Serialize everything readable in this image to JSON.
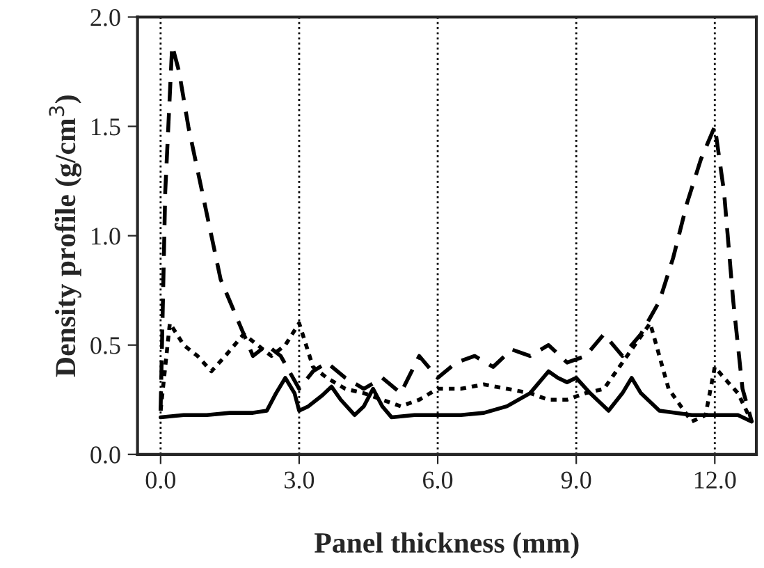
{
  "chart_data": {
    "type": "line",
    "xlabel": "Panel thickness (mm)",
    "ylabel": "Density profile (g/cm$^{3}$)",
    "xlim": [
      -0.5,
      12.9
    ],
    "ylim": [
      0,
      2.0
    ],
    "xticks": [
      {
        "value": 0,
        "label": "0.0"
      },
      {
        "value": 3,
        "label": "3.0"
      },
      {
        "value": 6,
        "label": "6.0"
      },
      {
        "value": 9,
        "label": "9.0"
      },
      {
        "value": 12,
        "label": "12.0"
      }
    ],
    "yticks": [
      {
        "value": 0,
        "label": "0.0"
      },
      {
        "value": 0.5,
        "label": "0.5"
      },
      {
        "value": 1.0,
        "label": "1.0"
      },
      {
        "value": 1.5,
        "label": "1.5"
      },
      {
        "value": 2.0,
        "label": "2.0"
      }
    ],
    "grid": "x",
    "legend": false,
    "series": [
      {
        "color": "#000000",
        "line_style": "solid",
        "x": [
          0,
          0.5,
          1.0,
          1.5,
          2.0,
          2.3,
          2.5,
          2.7,
          2.9,
          3.0,
          3.2,
          3.5,
          3.7,
          3.9,
          4.2,
          4.4,
          4.6,
          4.8,
          5.0,
          5.5,
          6.0,
          6.5,
          7.0,
          7.5,
          8.0,
          8.4,
          8.6,
          8.8,
          9.0,
          9.3,
          9.7,
          10.0,
          10.2,
          10.4,
          10.8,
          11.5,
          12.0,
          12.5,
          12.8
        ],
        "values": [
          0.17,
          0.18,
          0.18,
          0.19,
          0.19,
          0.2,
          0.28,
          0.35,
          0.28,
          0.2,
          0.22,
          0.27,
          0.31,
          0.25,
          0.18,
          0.22,
          0.3,
          0.22,
          0.17,
          0.18,
          0.18,
          0.18,
          0.19,
          0.22,
          0.28,
          0.38,
          0.35,
          0.33,
          0.35,
          0.28,
          0.2,
          0.28,
          0.35,
          0.28,
          0.2,
          0.18,
          0.18,
          0.18,
          0.15
        ]
      },
      {
        "color": "#000000",
        "line_style": "dashed",
        "x": [
          0,
          0.1,
          0.25,
          0.4,
          0.6,
          0.9,
          1.1,
          1.3,
          1.5,
          1.8,
          2.0,
          2.3,
          2.6,
          3.0,
          3.3,
          3.6,
          4.0,
          4.4,
          4.8,
          5.2,
          5.6,
          6.0,
          6.4,
          6.8,
          7.2,
          7.6,
          8.0,
          8.4,
          8.8,
          9.2,
          9.6,
          10.0,
          10.4,
          10.8,
          11.1,
          11.4,
          11.7,
          12.0,
          12.2,
          12.4,
          12.6,
          12.8
        ],
        "values": [
          0.2,
          1.2,
          1.87,
          1.75,
          1.5,
          1.2,
          1.0,
          0.8,
          0.7,
          0.55,
          0.45,
          0.5,
          0.45,
          0.3,
          0.38,
          0.42,
          0.35,
          0.3,
          0.35,
          0.28,
          0.45,
          0.35,
          0.42,
          0.45,
          0.4,
          0.48,
          0.45,
          0.5,
          0.42,
          0.45,
          0.55,
          0.45,
          0.55,
          0.7,
          0.9,
          1.15,
          1.35,
          1.5,
          1.2,
          0.7,
          0.3,
          0.15
        ]
      },
      {
        "color": "#000000",
        "line_style": "dotted",
        "x": [
          0,
          0.2,
          0.5,
          0.8,
          1.1,
          1.4,
          1.8,
          2.1,
          2.4,
          2.7,
          3.0,
          3.3,
          3.6,
          4.0,
          4.4,
          4.8,
          5.2,
          5.6,
          6.0,
          6.5,
          7.0,
          7.5,
          8.0,
          8.4,
          8.8,
          9.2,
          9.6,
          10.0,
          10.2,
          10.6,
          11.0,
          11.5,
          11.8,
          12.0,
          12.2,
          12.5,
          12.8
        ],
        "values": [
          0.2,
          0.6,
          0.5,
          0.45,
          0.38,
          0.45,
          0.55,
          0.5,
          0.45,
          0.5,
          0.6,
          0.4,
          0.35,
          0.3,
          0.28,
          0.25,
          0.22,
          0.25,
          0.3,
          0.3,
          0.32,
          0.3,
          0.28,
          0.25,
          0.25,
          0.28,
          0.3,
          0.42,
          0.48,
          0.6,
          0.3,
          0.15,
          0.18,
          0.4,
          0.35,
          0.28,
          0.15
        ]
      }
    ]
  }
}
